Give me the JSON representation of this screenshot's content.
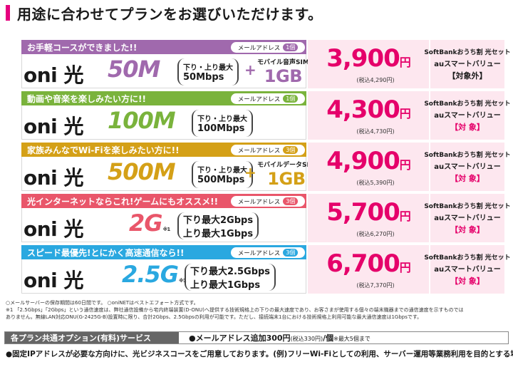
{
  "header": {
    "title": "用途に合わせてプランをお選びいただけます。",
    "accent": "#e6007e"
  },
  "plans": [
    {
      "catch": "お手軽コースができました!!",
      "band_color": "#a069ad",
      "mail_label": "メールアドレス",
      "mail_count": "1個",
      "brand": "oni 光",
      "speed": "50M",
      "speed_note": "",
      "speed_color": "#a069ad",
      "spec_line1": "下り・上り最大",
      "spec_line2": "50Mbps",
      "option_line1": "モバイル音声SIM",
      "option_line2": "1GB",
      "price": "3,900",
      "yen": "円",
      "tax": "(税込4,290円)",
      "disc1": "SoftBankおうち割 光セット",
      "disc2": "auスマートバリュー",
      "disc3": "【対象外】",
      "disc3_color": "#1a1a1a"
    },
    {
      "catch": "動画や音楽を楽しみたい方に!!",
      "band_color": "#7ab33c",
      "mail_label": "メールアドレス",
      "mail_count": "1個",
      "brand": "oni 光",
      "speed": "100M",
      "speed_note": "",
      "speed_color": "#7ab33c",
      "spec_line1": "下り・上り最大",
      "spec_line2": "100Mbps",
      "option_line1": "",
      "option_line2": "",
      "price": "4,300",
      "yen": "円",
      "tax": "(税込4,730円)",
      "disc1": "SoftBankおうち割 光セット",
      "disc2": "auスマートバリュー",
      "disc3": "【対 象】",
      "disc3_color": "#e5006a"
    },
    {
      "catch": "家族みんなでWi-Fiを楽しみたい方に!!",
      "band_color": "#d4a017",
      "mail_label": "メールアドレス",
      "mail_count": "3個",
      "brand": "oni 光",
      "speed": "500M",
      "speed_note": "",
      "speed_color": "#d4a017",
      "spec_line1": "下り・上り最大",
      "spec_line2": "500Mbps",
      "option_line1": "モバイルデータSIM",
      "option_line2": "1GB",
      "price": "4,900",
      "yen": "円",
      "tax": "(税込5,390円)",
      "disc1": "SoftBankおうち割 光セット",
      "disc2": "auスマートバリュー",
      "disc3": "【対 象】",
      "disc3_color": "#e5006a"
    },
    {
      "catch": "光インターネットならこれ!ゲームにもオススメ!!",
      "band_color": "#e9566a",
      "mail_label": "メールアドレス",
      "mail_count": "3個",
      "brand": "oni 光",
      "speed": "2G",
      "speed_note": "※1",
      "speed_color": "#e9566a",
      "spec_line1": "下り最大2Gbps",
      "spec_line2": "上り最大1Gbps",
      "option_line1": "",
      "option_line2": "",
      "price": "5,700",
      "yen": "円",
      "tax": "(税込6,270円)",
      "disc1": "SoftBankおうち割 光セット",
      "disc2": "auスマートバリュー",
      "disc3": "【対 象】",
      "disc3_color": "#e5006a"
    },
    {
      "catch": "スピード最優先!とにかく高速通信なら!!",
      "band_color": "#2aa8e0",
      "mail_label": "メールアドレス",
      "mail_count": "3個",
      "brand": "oni 光",
      "speed": "2.5G",
      "speed_note": "※1",
      "speed_color": "#2aa8e0",
      "spec_line1": "下り最大2.5Gbps",
      "spec_line2": "上り最大1Gbps",
      "option_line1": "",
      "option_line2": "",
      "price": "6,700",
      "yen": "円",
      "tax": "(税込7,370円)",
      "disc1": "SoftBankおうち割 光セット",
      "disc2": "auスマートバリュー",
      "disc3": "【対 象】",
      "disc3_color": "#e5006a"
    }
  ],
  "notes": [
    "○メールサーバーの保存期間は60日間です。 ○oniNETはベストエフォート方式です。",
    "※1 「2.5Gbps」「2Gbps」という通信速度は、弊社通信設備から宅内終端装置(D-ONU)へ提供する技術規格上の下りの最大速度であり、お客さまが使用する個々の端末機器までの通信速度を示すものでは",
    "ありません。無線LAN対応ONU(G-2425G-B)設置時に限り、合計2Gbps、2.5Gbpsの利用が可能です。ただし、接続端末1台における技術規格上利用可能な最大通信速度は1Gbpsです。"
  ],
  "common_option": {
    "header": "各プラン共通オプション(有料)サービス",
    "value": "●メールアドレス追加300円",
    "value_small": "(税込330円)",
    "value_tail": "/個",
    "value_note": "※最大5個まで"
  },
  "footer": "●固定IPアドレスが必要な方向けに、光ビジネスコースをご用意しております。(例)フリーWi-Fiとしての利用、サーバー運用等業務利用を目的とする場合"
}
